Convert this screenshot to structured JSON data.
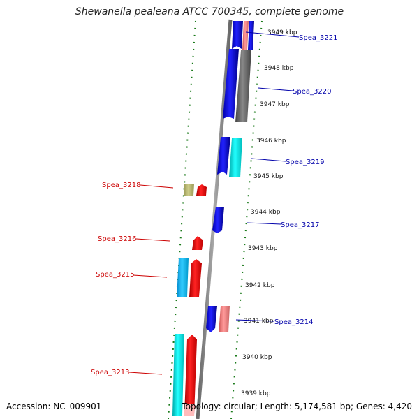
{
  "title": "Shewanella pealeana ATCC 700345, complete genome",
  "accession": "Accession: NC_009901",
  "summary": "Topology: circular; Length: 5,174,581 bp; Genes: 4,420",
  "colors": {
    "backbone": "#777777",
    "ruler": "#1a7a1a",
    "reverse_label": "#cc0000",
    "forward_label": "#0000aa"
  },
  "kbp_labels": [
    "3949 kbp",
    "3948 kbp",
    "3947 kbp",
    "3946 kbp",
    "3945 kbp",
    "3944 kbp",
    "3943 kbp",
    "3942 kbp",
    "3941 kbp",
    "3940 kbp",
    "3939 kbp"
  ],
  "genes_forward": [
    "Spea_3221",
    "Spea_3220",
    "Spea_3219",
    "Spea_3217",
    "Spea_3214"
  ],
  "genes_reverse": [
    "Spea_3218",
    "Spea_3216",
    "Spea_3215",
    "Spea_3213"
  ]
}
